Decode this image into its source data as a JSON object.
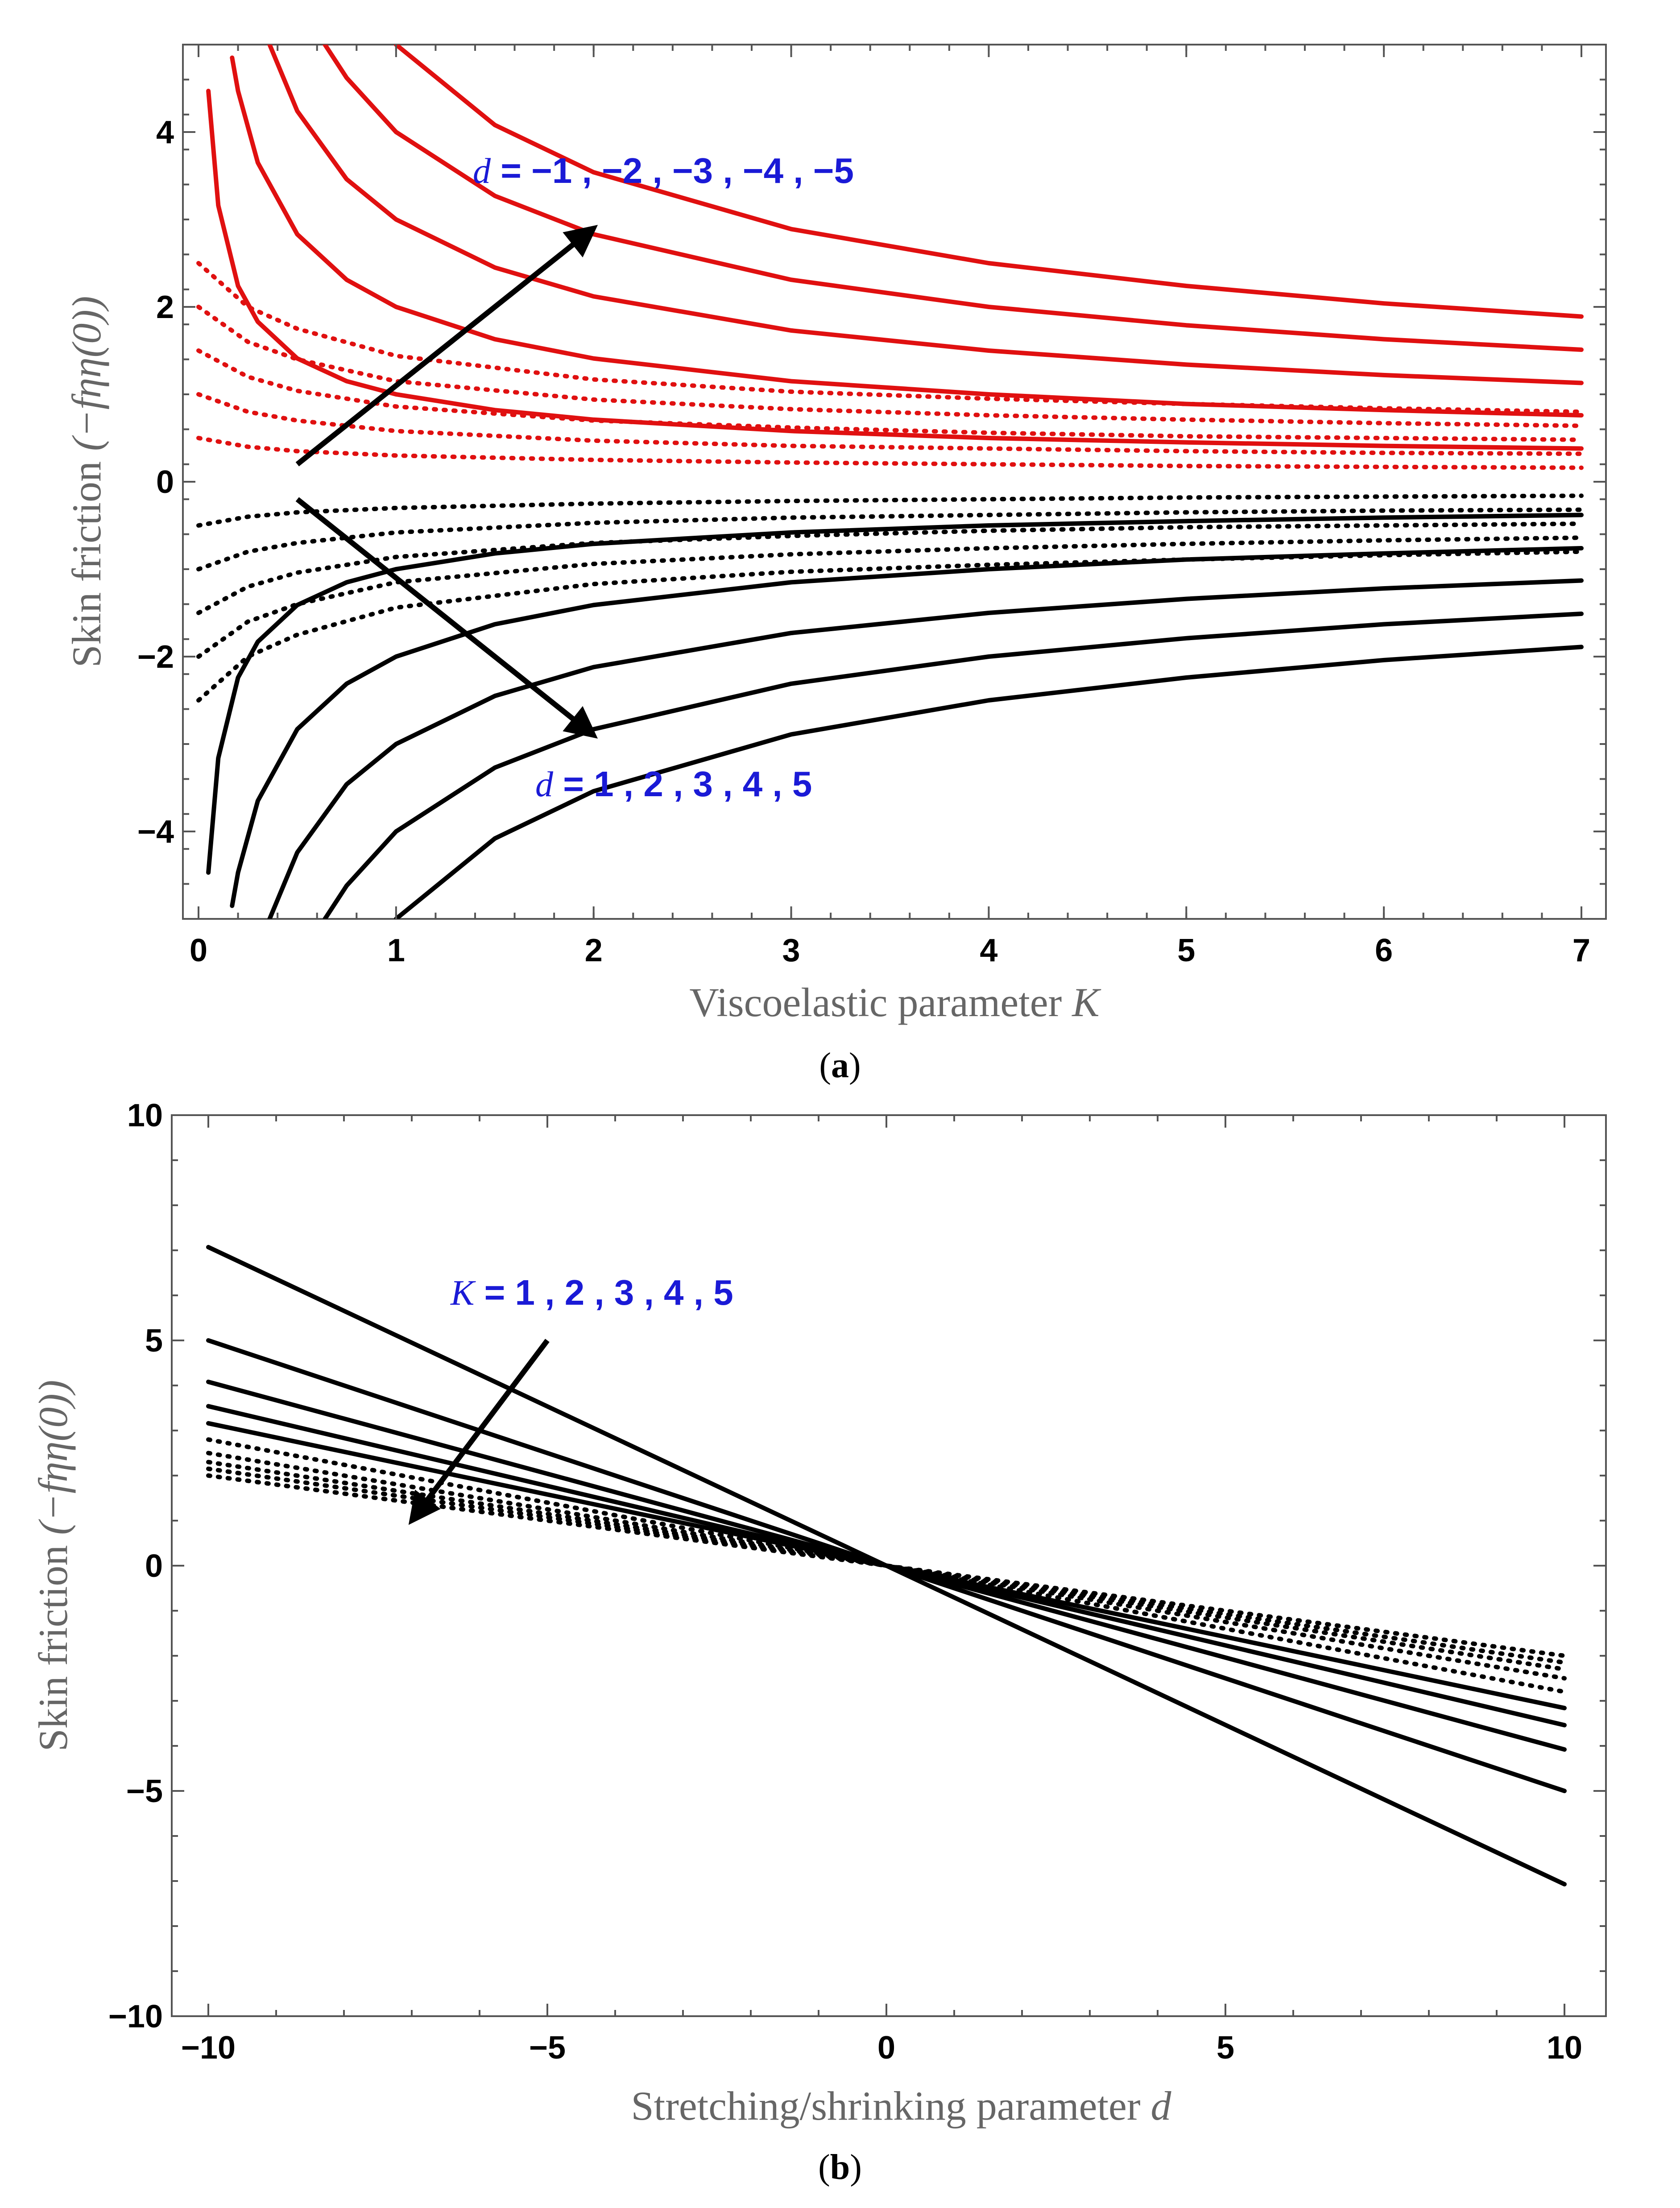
{
  "chart_data": [
    {
      "type": "line",
      "panel": "a",
      "caption": "(a)",
      "caption_letter": "a",
      "xlabel": "Viscoelastic parameter",
      "xlabel_symbol": "K",
      "ylabel": "Skin friction (−f_ηη(0))",
      "ylabel_prefix": "Skin friction",
      "ylabel_math": "(−fηη(0))",
      "xlim": [
        0,
        7
      ],
      "ylim": [
        -5,
        5
      ],
      "x_ticks": [
        "0",
        "1",
        "2",
        "3",
        "4",
        "5",
        "6",
        "7"
      ],
      "y_ticks": [
        "−4",
        "−2",
        "0",
        "2",
        "4"
      ],
      "x_tick_values": [
        0,
        1,
        2,
        3,
        4,
        5,
        6,
        7
      ],
      "y_tick_values": [
        -4,
        -2,
        0,
        2,
        4
      ],
      "annotations": [
        {
          "symbol": "d",
          "text": " = −1 , −2 , −3 , −4 , −5",
          "color": "#1a1ad6"
        },
        {
          "symbol": "d",
          "text": " = 1 , 2 , 3 , 4 , 5",
          "color": "#1a1ad6"
        }
      ],
      "arrows": [
        {
          "from": [
            0.5,
            0.2
          ],
          "to": [
            2.0,
            2.9
          ]
        },
        {
          "from": [
            0.5,
            -0.2
          ],
          "to": [
            2.0,
            -2.9
          ]
        }
      ],
      "series": [
        {
          "name": "d=-1 (solid)",
          "d": -1,
          "style": "solid",
          "color": "#e01010",
          "x": [
            0.05,
            0.1,
            0.2,
            0.3,
            0.5,
            0.75,
            1,
            1.5,
            2,
            3,
            4,
            5,
            6,
            7
          ],
          "values": [
            4.47,
            3.16,
            2.24,
            1.83,
            1.41,
            1.15,
            1.0,
            0.82,
            0.71,
            0.58,
            0.5,
            0.45,
            0.41,
            0.38
          ]
        },
        {
          "name": "d=-2 (solid)",
          "d": -2,
          "style": "solid",
          "color": "#e01010",
          "x": [
            0.17,
            0.2,
            0.3,
            0.5,
            0.75,
            1,
            1.5,
            2,
            3,
            4,
            5,
            6,
            7
          ],
          "values": [
            4.85,
            4.47,
            3.65,
            2.83,
            2.31,
            2.0,
            1.63,
            1.41,
            1.15,
            1.0,
            0.89,
            0.82,
            0.76
          ]
        },
        {
          "name": "d=-3 (solid)",
          "d": -3,
          "style": "solid",
          "color": "#e01010",
          "x": [
            0.36,
            0.5,
            0.75,
            1,
            1.5,
            2,
            3,
            4,
            5,
            6,
            7
          ],
          "values": [
            5.0,
            4.24,
            3.46,
            3.0,
            2.45,
            2.12,
            1.73,
            1.5,
            1.34,
            1.22,
            1.13
          ]
        },
        {
          "name": "d=-4 (solid)",
          "d": -4,
          "style": "solid",
          "color": "#e01010",
          "x": [
            0.64,
            0.75,
            1,
            1.5,
            2,
            3,
            4,
            5,
            6,
            7
          ],
          "values": [
            5.0,
            4.62,
            4.0,
            3.27,
            2.83,
            2.31,
            2.0,
            1.79,
            1.63,
            1.51
          ]
        },
        {
          "name": "d=-5 (solid)",
          "d": -5,
          "style": "solid",
          "color": "#e01010",
          "x": [
            1.0,
            1.5,
            2,
            3,
            4,
            5,
            6,
            7
          ],
          "values": [
            5.0,
            4.08,
            3.54,
            2.89,
            2.5,
            2.24,
            2.04,
            1.89
          ]
        },
        {
          "name": "d=-1 (dotted)",
          "d": -1,
          "style": "dotted",
          "color": "#e01010",
          "x": [
            0,
            0.25,
            0.5,
            1,
            2,
            3,
            4,
            5,
            6,
            7
          ],
          "values": [
            0.5,
            0.4,
            0.35,
            0.3,
            0.25,
            0.22,
            0.2,
            0.18,
            0.17,
            0.16
          ]
        },
        {
          "name": "d=-2 (dotted)",
          "d": -2,
          "style": "dotted",
          "color": "#e01010",
          "x": [
            0,
            0.25,
            0.5,
            1,
            2,
            3,
            4,
            5,
            6,
            7
          ],
          "values": [
            1.0,
            0.8,
            0.7,
            0.58,
            0.47,
            0.41,
            0.38,
            0.35,
            0.33,
            0.32
          ]
        },
        {
          "name": "d=-3 (dotted)",
          "d": -3,
          "style": "dotted",
          "color": "#e01010",
          "x": [
            0,
            0.25,
            0.5,
            1,
            2,
            3,
            4,
            5,
            6,
            7
          ],
          "values": [
            1.5,
            1.2,
            1.04,
            0.86,
            0.7,
            0.62,
            0.56,
            0.52,
            0.5,
            0.48
          ]
        },
        {
          "name": "d=-4 (dotted)",
          "d": -4,
          "style": "dotted",
          "color": "#e01010",
          "x": [
            0,
            0.25,
            0.5,
            1,
            2,
            3,
            4,
            5,
            6,
            7
          ],
          "values": [
            2.0,
            1.6,
            1.4,
            1.15,
            0.94,
            0.83,
            0.76,
            0.71,
            0.67,
            0.64
          ]
        },
        {
          "name": "d=-5 (dotted)",
          "d": -5,
          "style": "dotted",
          "color": "#e01010",
          "x": [
            0,
            0.25,
            0.5,
            1,
            2,
            3,
            4,
            5,
            6,
            7
          ],
          "values": [
            2.5,
            2.0,
            1.75,
            1.44,
            1.17,
            1.03,
            0.95,
            0.89,
            0.84,
            0.8
          ]
        },
        {
          "name": "d=1 (solid)",
          "d": 1,
          "style": "solid",
          "color": "#000000",
          "x": [
            0.05,
            0.1,
            0.2,
            0.3,
            0.5,
            0.75,
            1,
            1.5,
            2,
            3,
            4,
            5,
            6,
            7
          ],
          "values": [
            -4.47,
            -3.16,
            -2.24,
            -1.83,
            -1.41,
            -1.15,
            -1.0,
            -0.82,
            -0.71,
            -0.58,
            -0.5,
            -0.45,
            -0.41,
            -0.38
          ]
        },
        {
          "name": "d=2 (solid)",
          "d": 2,
          "style": "solid",
          "color": "#000000",
          "x": [
            0.17,
            0.2,
            0.3,
            0.5,
            0.75,
            1,
            1.5,
            2,
            3,
            4,
            5,
            6,
            7
          ],
          "values": [
            -4.85,
            -4.47,
            -3.65,
            -2.83,
            -2.31,
            -2.0,
            -1.63,
            -1.41,
            -1.15,
            -1.0,
            -0.89,
            -0.82,
            -0.76
          ]
        },
        {
          "name": "d=3 (solid)",
          "d": 3,
          "style": "solid",
          "color": "#000000",
          "x": [
            0.36,
            0.5,
            0.75,
            1,
            1.5,
            2,
            3,
            4,
            5,
            6,
            7
          ],
          "values": [
            -5.0,
            -4.24,
            -3.46,
            -3.0,
            -2.45,
            -2.12,
            -1.73,
            -1.5,
            -1.34,
            -1.22,
            -1.13
          ]
        },
        {
          "name": "d=4 (solid)",
          "d": 4,
          "style": "solid",
          "color": "#000000",
          "x": [
            0.64,
            0.75,
            1,
            1.5,
            2,
            3,
            4,
            5,
            6,
            7
          ],
          "values": [
            -5.0,
            -4.62,
            -4.0,
            -3.27,
            -2.83,
            -2.31,
            -2.0,
            -1.79,
            -1.63,
            -1.51
          ]
        },
        {
          "name": "d=5 (solid)",
          "d": 5,
          "style": "solid",
          "color": "#000000",
          "x": [
            1.0,
            1.5,
            2,
            3,
            4,
            5,
            6,
            7
          ],
          "values": [
            -5.0,
            -4.08,
            -3.54,
            -2.89,
            -2.5,
            -2.24,
            -2.04,
            -1.89
          ]
        },
        {
          "name": "d=1 (dotted)",
          "d": 1,
          "style": "dotted",
          "color": "#000000",
          "x": [
            0,
            0.25,
            0.5,
            1,
            2,
            3,
            4,
            5,
            6,
            7
          ],
          "values": [
            -0.5,
            -0.4,
            -0.35,
            -0.3,
            -0.25,
            -0.22,
            -0.2,
            -0.18,
            -0.17,
            -0.16
          ]
        },
        {
          "name": "d=2 (dotted)",
          "d": 2,
          "style": "dotted",
          "color": "#000000",
          "x": [
            0,
            0.25,
            0.5,
            1,
            2,
            3,
            4,
            5,
            6,
            7
          ],
          "values": [
            -1.0,
            -0.8,
            -0.7,
            -0.58,
            -0.47,
            -0.41,
            -0.38,
            -0.35,
            -0.33,
            -0.32
          ]
        },
        {
          "name": "d=3 (dotted)",
          "d": 3,
          "style": "dotted",
          "color": "#000000",
          "x": [
            0,
            0.25,
            0.5,
            1,
            2,
            3,
            4,
            5,
            6,
            7
          ],
          "values": [
            -1.5,
            -1.2,
            -1.04,
            -0.86,
            -0.7,
            -0.62,
            -0.56,
            -0.52,
            -0.5,
            -0.48
          ]
        },
        {
          "name": "d=4 (dotted)",
          "d": 4,
          "style": "dotted",
          "color": "#000000",
          "x": [
            0,
            0.25,
            0.5,
            1,
            2,
            3,
            4,
            5,
            6,
            7
          ],
          "values": [
            -2.0,
            -1.6,
            -1.4,
            -1.15,
            -0.94,
            -0.83,
            -0.76,
            -0.71,
            -0.67,
            -0.64
          ]
        },
        {
          "name": "d=5 (dotted)",
          "d": 5,
          "style": "dotted",
          "color": "#000000",
          "x": [
            0,
            0.25,
            0.5,
            1,
            2,
            3,
            4,
            5,
            6,
            7
          ],
          "values": [
            -2.5,
            -2.0,
            -1.75,
            -1.44,
            -1.17,
            -1.03,
            -0.95,
            -0.89,
            -0.84,
            -0.8
          ]
        }
      ]
    },
    {
      "type": "line",
      "panel": "b",
      "caption": "(b)",
      "caption_letter": "b",
      "xlabel": "Stretching/shrinking parameter",
      "xlabel_symbol": "d",
      "ylabel": "Skin friction (−f_ηη(0))",
      "ylabel_prefix": "Skin friction",
      "ylabel_math": "(−fηη(0))",
      "xlim": [
        -10,
        10
      ],
      "ylim": [
        -10,
        10
      ],
      "x_ticks": [
        "−10",
        "−5",
        "0",
        "5",
        "10"
      ],
      "y_ticks": [
        "−10",
        "−5",
        "0",
        "5",
        "10"
      ],
      "x_tick_values": [
        -10,
        -5,
        0,
        5,
        10
      ],
      "y_tick_values": [
        -10,
        -5,
        0,
        5,
        10
      ],
      "annotations": [
        {
          "symbol": "K",
          "text": " = 1 , 2 , 3 , 4 , 5",
          "color": "#1a1ad6"
        }
      ],
      "arrows": [
        {
          "from": [
            -5.0,
            5.0
          ],
          "to": [
            -7.0,
            1.0
          ]
        }
      ],
      "series": [
        {
          "name": "K=1 (solid)",
          "K": 1,
          "style": "solid",
          "color": "#000000",
          "x": [
            -10,
            10
          ],
          "values": [
            7.07,
            -7.07
          ]
        },
        {
          "name": "K=2 (solid)",
          "K": 2,
          "style": "solid",
          "color": "#000000",
          "x": [
            -10,
            10
          ],
          "values": [
            5.0,
            -5.0
          ]
        },
        {
          "name": "K=3 (solid)",
          "K": 3,
          "style": "solid",
          "color": "#000000",
          "x": [
            -10,
            10
          ],
          "values": [
            4.08,
            -4.08
          ]
        },
        {
          "name": "K=4 (solid)",
          "K": 4,
          "style": "solid",
          "color": "#000000",
          "x": [
            -10,
            10
          ],
          "values": [
            3.54,
            -3.54
          ]
        },
        {
          "name": "K=5 (solid)",
          "K": 5,
          "style": "solid",
          "color": "#000000",
          "x": [
            -10,
            10
          ],
          "values": [
            3.16,
            -3.16
          ]
        },
        {
          "name": "K=1 (dotted)",
          "K": 1,
          "style": "dotted",
          "color": "#000000",
          "x": [
            -10,
            10
          ],
          "values": [
            2.8,
            -2.8
          ]
        },
        {
          "name": "K=2 (dotted)",
          "K": 2,
          "style": "dotted",
          "color": "#000000",
          "x": [
            -10,
            10
          ],
          "values": [
            2.5,
            -2.5
          ]
        },
        {
          "name": "K=3 (dotted)",
          "K": 3,
          "style": "dotted",
          "color": "#000000",
          "x": [
            -10,
            10
          ],
          "values": [
            2.3,
            -2.3
          ]
        },
        {
          "name": "K=4 (dotted)",
          "K": 4,
          "style": "dotted",
          "color": "#000000",
          "x": [
            -10,
            10
          ],
          "values": [
            2.15,
            -2.15
          ]
        },
        {
          "name": "K=5 (dotted)",
          "K": 5,
          "style": "dotted",
          "color": "#000000",
          "x": [
            -10,
            10
          ],
          "values": [
            2.0,
            -2.0
          ]
        }
      ]
    }
  ]
}
